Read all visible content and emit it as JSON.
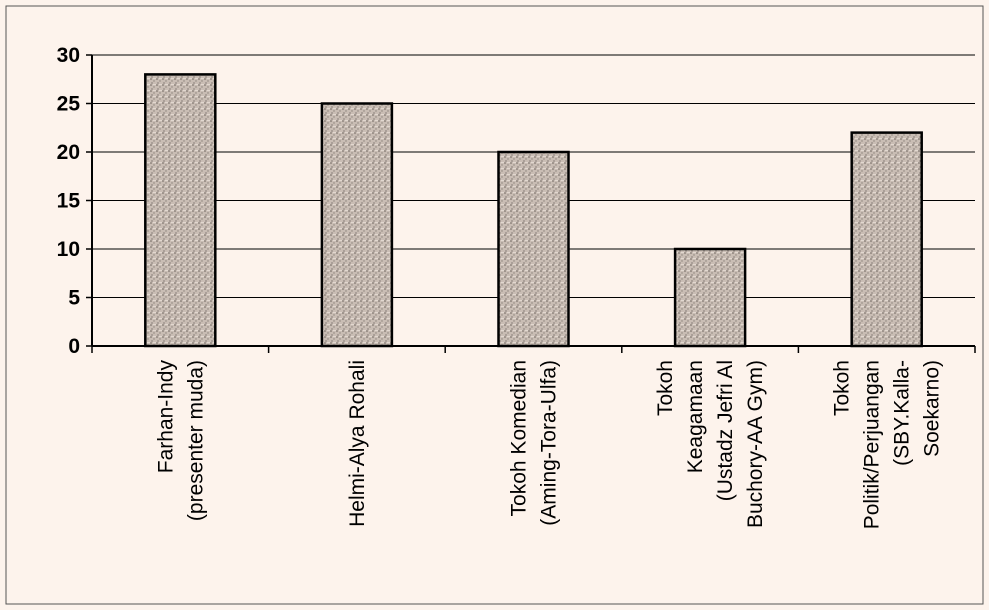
{
  "chart_data": {
    "type": "bar",
    "title": "",
    "xlabel": "",
    "ylabel": "",
    "ylim": [
      0,
      30
    ],
    "yticks": [
      0,
      5,
      10,
      15,
      20,
      25,
      30
    ],
    "grid": true,
    "legend": "none",
    "categories": [
      [
        "Farhan-Indy",
        "(presenter muda)"
      ],
      [
        "Helmi-Alya Rohali"
      ],
      [
        "Tokoh Komedian",
        "(Aming-Tora-Ulfa)"
      ],
      [
        "Tokoh",
        "Keagamaan",
        "(Ustadz Jefri Al",
        "Buchory-AA Gym)"
      ],
      [
        "Tokoh",
        "Politik/Perjuangan",
        "(SBY.Kalla-",
        "Soekarno)"
      ]
    ],
    "values": [
      28,
      25,
      20,
      10,
      22
    ],
    "colors": {
      "background": "#fdf3ec",
      "bar_fill": "#c9bdb4",
      "bar_stroke": "#000000",
      "grid": "#000000"
    }
  }
}
